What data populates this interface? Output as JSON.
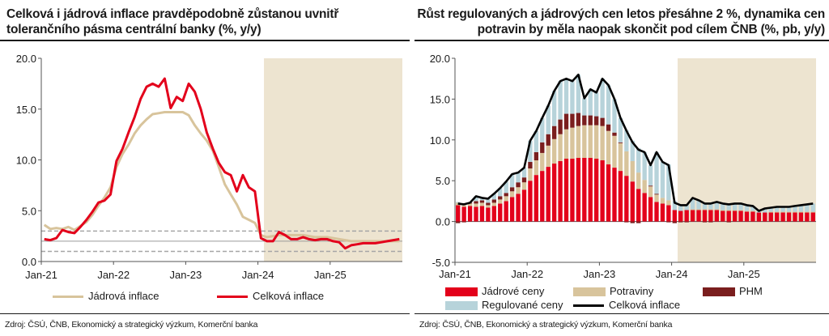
{
  "left_panel": {
    "title": "Celková i jádrová inflace pravděpodobně zůstanou uvnitř tolerančního pásma centrální banky (%, y/y)",
    "source": "Zdroj: ČSÚ, ČNB, Ekonomický a strategický výzkum, Komerční banka",
    "legend": {
      "core": "Jádrová inflace",
      "headline": "Celková inflace"
    }
  },
  "right_panel": {
    "title": "Růst regulovaných a jádrových cen letos přesáhne 2 %, dynamika cen potravin by měla naopak skončit pod cílem ČNB (%, pb, y/y)",
    "source": "Zdroj: ČSÚ, ČNB, Ekonomický a strategický výzkum, Komerční banka",
    "legend": {
      "core": "Jádrové ceny",
      "food": "Potraviny",
      "fuel": "PHM",
      "regulated": "Regulované ceny",
      "headline": "Celková inflace"
    }
  },
  "colors": {
    "headline_red": "#e3001b",
    "core_beige": "#d8c49c",
    "forecast_shade": "#ede4d0",
    "fuel_brown": "#7a1e1e",
    "regulated_blue": "#b7d3da",
    "headline_black": "#000000",
    "band_gray": "#a6a6a6"
  },
  "chart_data": [
    {
      "type": "line",
      "x_tick_labels": [
        "Jan-21",
        "Jan-22",
        "Jan-23",
        "Jan-24",
        "Jan-25"
      ],
      "y_tick_labels": [
        "0.0",
        "5.0",
        "10.0",
        "15.0",
        "20.0"
      ],
      "ylim": [
        0,
        20
      ],
      "x_start": "2021-01",
      "forecast_from": "2024-02",
      "tolerance_band": {
        "lower": 1,
        "target": 2,
        "upper": 3
      },
      "series": [
        {
          "name": "Jádrová inflace",
          "values": [
            3.6,
            3.2,
            3.3,
            3.2,
            3.4,
            3.1,
            3.5,
            3.9,
            4.6,
            5.5,
            6.3,
            7.3,
            9.3,
            10.6,
            11.5,
            12.6,
            13.4,
            14.0,
            14.5,
            14.6,
            14.7,
            14.7,
            14.7,
            14.7,
            14.4,
            13.4,
            12.6,
            11.9,
            10.9,
            9.3,
            7.6,
            6.6,
            5.6,
            4.4,
            4.1,
            3.8,
            2.6,
            2.4,
            2.5,
            2.6,
            2.6,
            2.6,
            2.6,
            2.6,
            2.5,
            2.4,
            2.4,
            2.4,
            2.3,
            2.2,
            2.1,
            2.0,
            2.0,
            2.0,
            2.0,
            2.0,
            2.0,
            2.0,
            2.0,
            2.0
          ]
        },
        {
          "name": "Celková inflace",
          "values": [
            2.2,
            2.1,
            2.3,
            3.1,
            2.9,
            2.8,
            3.4,
            4.1,
            4.9,
            5.8,
            6.0,
            6.6,
            9.9,
            11.1,
            12.7,
            14.2,
            16.0,
            17.2,
            17.5,
            17.2,
            18.0,
            15.1,
            16.2,
            15.8,
            17.5,
            16.7,
            15.0,
            12.7,
            11.1,
            9.7,
            8.8,
            8.5,
            6.9,
            8.5,
            7.3,
            6.9,
            2.3,
            2.0,
            2.0,
            2.9,
            2.6,
            2.2,
            2.2,
            2.4,
            2.2,
            2.1,
            2.2,
            2.2,
            2.0,
            1.9,
            1.3,
            1.6,
            1.7,
            1.8,
            1.8,
            1.8,
            1.9,
            2.0,
            2.1,
            2.2
          ]
        }
      ]
    },
    {
      "type": "bar",
      "stacked": true,
      "x_tick_labels": [
        "Jan-21",
        "Jan-22",
        "Jan-23",
        "Jan-24",
        "Jan-25"
      ],
      "y_tick_labels": [
        "-5.0",
        "0.0",
        "5.0",
        "10.0",
        "15.0",
        "20.0"
      ],
      "ylim": [
        -5,
        20
      ],
      "x_start": "2021-01",
      "forecast_from": "2024-02",
      "series": [
        {
          "name": "Jádrové ceny",
          "values": [
            2.0,
            1.8,
            1.9,
            1.8,
            1.9,
            1.7,
            1.9,
            2.2,
            2.5,
            3.0,
            3.4,
            3.9,
            5.0,
            5.7,
            6.2,
            6.7,
            7.1,
            7.4,
            7.7,
            7.7,
            7.8,
            7.8,
            7.8,
            7.7,
            7.5,
            7.0,
            6.6,
            6.2,
            5.6,
            4.9,
            4.0,
            3.5,
            3.0,
            2.4,
            2.2,
            2.0,
            1.4,
            1.3,
            1.4,
            1.4,
            1.4,
            1.4,
            1.4,
            1.4,
            1.3,
            1.3,
            1.3,
            1.3,
            1.2,
            1.2,
            1.1,
            1.1,
            1.1,
            1.1,
            1.1,
            1.1,
            1.1,
            1.1,
            1.1,
            1.1
          ]
        },
        {
          "name": "Potraviny",
          "values": [
            0.3,
            0.2,
            0.3,
            0.4,
            0.4,
            0.3,
            0.4,
            0.5,
            0.6,
            0.7,
            0.8,
            0.9,
            1.5,
            1.8,
            2.2,
            2.6,
            3.0,
            3.3,
            3.6,
            3.8,
            3.9,
            4.0,
            4.0,
            4.1,
            4.2,
            4.1,
            3.9,
            3.4,
            3.0,
            2.5,
            2.0,
            1.6,
            1.3,
            0.9,
            0.7,
            0.6,
            0.0,
            0.0,
            0.0,
            0.1,
            0.1,
            0.1,
            0.1,
            0.1,
            0.1,
            0.1,
            0.1,
            0.1,
            0.1,
            0.1,
            0.0,
            0.0,
            0.1,
            0.1,
            0.1,
            0.1,
            0.1,
            0.1,
            0.1,
            0.1
          ]
        },
        {
          "name": "PHM",
          "values": [
            -0.2,
            -0.1,
            0.1,
            0.3,
            0.3,
            0.3,
            0.4,
            0.4,
            0.4,
            0.5,
            0.6,
            0.6,
            0.8,
            1.0,
            1.3,
            1.4,
            1.6,
            1.8,
            1.9,
            1.7,
            1.6,
            1.2,
            1.2,
            1.1,
            1.0,
            0.8,
            0.4,
            0.1,
            -0.1,
            -0.2,
            -0.2,
            0.0,
            0.1,
            0.1,
            0.0,
            -0.1,
            -0.2,
            -0.1,
            -0.1,
            0.0,
            0.0,
            -0.1,
            -0.1,
            0.0,
            0.0,
            -0.1,
            0.0,
            0.0,
            0.0,
            0.0,
            0.0,
            0.0,
            0.0,
            0.0,
            0.0,
            0.0,
            0.0,
            0.0,
            0.0,
            0.0
          ]
        },
        {
          "name": "Regulované ceny",
          "values": [
            0.1,
            0.2,
            0.0,
            0.6,
            0.3,
            0.5,
            0.7,
            1.0,
            1.4,
            1.6,
            1.2,
            1.2,
            2.6,
            2.6,
            3.0,
            3.5,
            4.3,
            4.7,
            4.3,
            4.0,
            4.7,
            2.1,
            3.2,
            2.9,
            4.8,
            4.8,
            4.1,
            3.0,
            2.6,
            2.5,
            3.0,
            3.4,
            2.5,
            5.1,
            4.4,
            4.4,
            1.1,
            0.8,
            0.7,
            1.4,
            1.1,
            0.8,
            0.8,
            0.9,
            0.8,
            0.8,
            0.8,
            0.8,
            0.7,
            0.6,
            0.2,
            0.5,
            0.5,
            0.6,
            0.6,
            0.6,
            0.7,
            0.8,
            0.9,
            1.0
          ]
        },
        {
          "name": "Celková inflace",
          "type": "line",
          "values": [
            2.2,
            2.1,
            2.3,
            3.1,
            2.9,
            2.8,
            3.4,
            4.1,
            4.9,
            5.8,
            6.0,
            6.6,
            9.9,
            11.1,
            12.7,
            14.2,
            16.0,
            17.2,
            17.5,
            17.2,
            18.0,
            15.1,
            16.2,
            15.8,
            17.5,
            16.7,
            15.0,
            12.7,
            11.1,
            9.7,
            8.8,
            8.5,
            6.9,
            8.5,
            7.3,
            6.9,
            2.3,
            2.0,
            2.0,
            2.9,
            2.6,
            2.2,
            2.2,
            2.4,
            2.2,
            2.1,
            2.2,
            2.2,
            2.0,
            1.9,
            1.3,
            1.6,
            1.7,
            1.8,
            1.8,
            1.8,
            1.9,
            2.0,
            2.1,
            2.2
          ]
        }
      ]
    }
  ]
}
